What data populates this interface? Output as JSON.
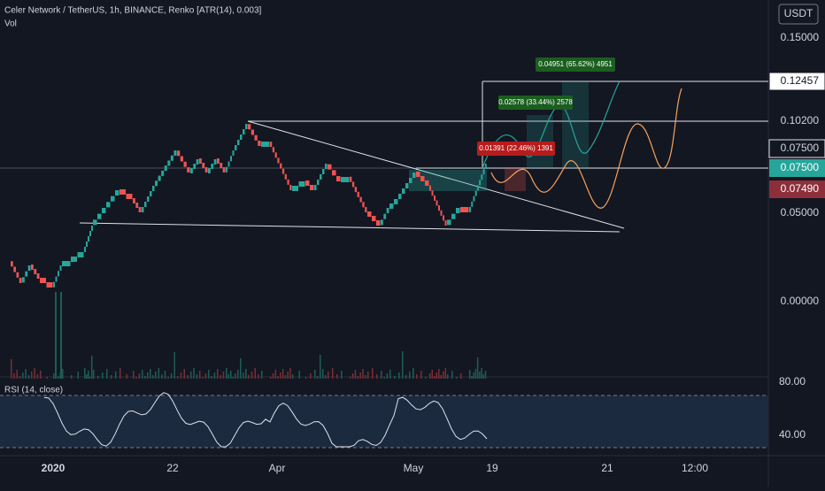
{
  "header": {
    "title": "Celer Network / TetherUS, 1h, BINANCE, Renko [ATR(14), 0.003]",
    "volume": "Vol"
  },
  "price_axis": {
    "currency": "USDT",
    "labels": [
      "0.15000",
      "0.10200",
      "0.05000",
      "0.00000"
    ]
  },
  "badges": {
    "target": "0.12457",
    "level": "0.07500",
    "last": "0.07500",
    "previous": "0.07490"
  },
  "measurements": [
    "0.04951 (65.62%) 4951",
    "0.02578 (33.44%) 2578",
    "0.01391 (22.46%) 1391"
  ],
  "rsi": {
    "label": "RSI (14, close)",
    "axis_labels": [
      "80.00",
      "40.00"
    ]
  },
  "time_axis": {
    "labels": [
      "2020",
      "22",
      "Apr",
      "May",
      "19",
      "21",
      "12:00"
    ]
  }
}
